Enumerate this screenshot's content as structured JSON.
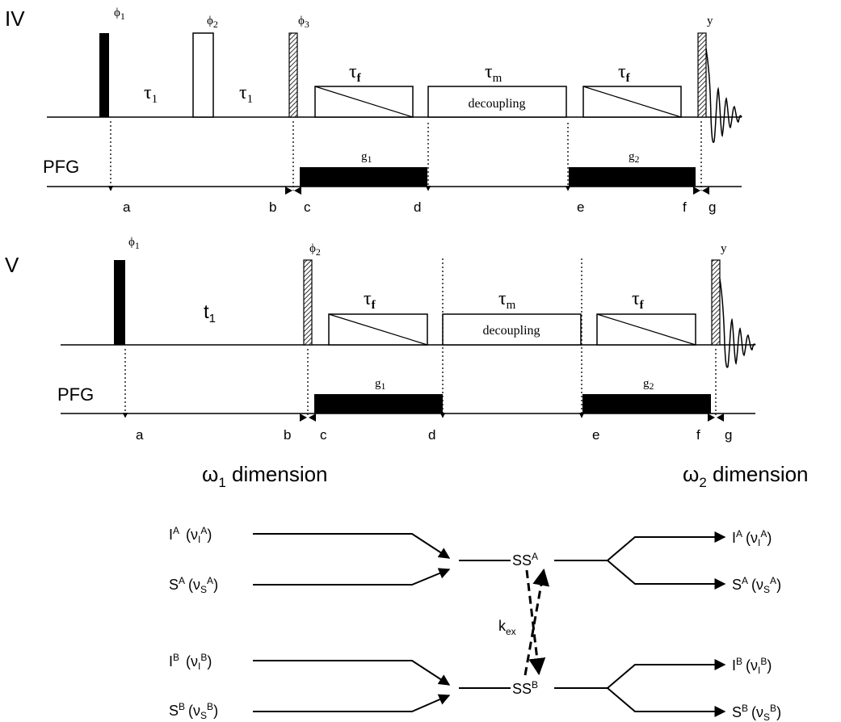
{
  "seq_iv": {
    "label": "IV",
    "phases": [
      "ϕ",
      "1",
      "ϕ",
      "2",
      "ϕ",
      "3",
      "y"
    ],
    "delays": {
      "tau1_a": "τ",
      "tau1_a_sub": "1",
      "tau1_b": "τ",
      "tau1_b_sub": "1"
    },
    "tau_f_1": "τ",
    "tau_f_1_sub": "f",
    "tau_m": "τ",
    "tau_m_sub": "m",
    "tau_f_2": "τ",
    "tau_f_2_sub": "f",
    "decoupling": "decoupling",
    "pfg": "PFG",
    "g1": "g",
    "g1_sub": "1",
    "g2": "g",
    "g2_sub": "2",
    "points": [
      "a",
      "b",
      "c",
      "d",
      "e",
      "f",
      "g"
    ]
  },
  "seq_v": {
    "label": "V",
    "phases": [
      "ϕ",
      "1",
      "ϕ",
      "2",
      "y"
    ],
    "t1": "t",
    "t1_sub": "1",
    "tau_f_1": "τ",
    "tau_f_1_sub": "f",
    "tau_m": "τ",
    "tau_m_sub": "m",
    "tau_f_2": "τ",
    "tau_f_2_sub": "f",
    "decoupling": "decoupling",
    "pfg": "PFG",
    "g1": "g",
    "g1_sub": "1",
    "g2": "g",
    "g2_sub": "2",
    "points": [
      "a",
      "b",
      "c",
      "d",
      "e",
      "f",
      "g"
    ]
  },
  "dims": {
    "w1": "ω",
    "w1_sub": "1",
    "w1_rest": " dimension",
    "w2": "ω",
    "w2_sub": "2",
    "w2_rest": " dimension"
  },
  "exchange": {
    "left": [
      {
        "main": "I",
        "sup": "A",
        "nu": "ν",
        "nu_sub": "I",
        "nu_sup": "A"
      },
      {
        "main": "S",
        "sup": "A",
        "nu": "ν",
        "nu_sub": "S",
        "nu_sup": "A"
      },
      {
        "main": "I",
        "sup": "B",
        "nu": "ν",
        "nu_sub": "I",
        "nu_sup": "B"
      },
      {
        "main": "S",
        "sup": "B",
        "nu": "ν",
        "nu_sub": "S",
        "nu_sup": "B"
      }
    ],
    "center": [
      {
        "main": "SS",
        "sup": "A"
      },
      {
        "main": "SS",
        "sup": "B"
      }
    ],
    "kex": "k",
    "kex_sub": "ex",
    "right": [
      {
        "main": "I",
        "sup": "A",
        "nu": "ν",
        "nu_sub": "I",
        "nu_sup": "A"
      },
      {
        "main": "S",
        "sup": "A",
        "nu": "ν",
        "nu_sub": "S",
        "nu_sup": "A"
      },
      {
        "main": "I",
        "sup": "B",
        "nu": "ν",
        "nu_sub": "I",
        "nu_sup": "B"
      },
      {
        "main": "S",
        "sup": "B",
        "nu": "ν",
        "nu_sub": "S",
        "nu_sup": "B"
      }
    ]
  }
}
